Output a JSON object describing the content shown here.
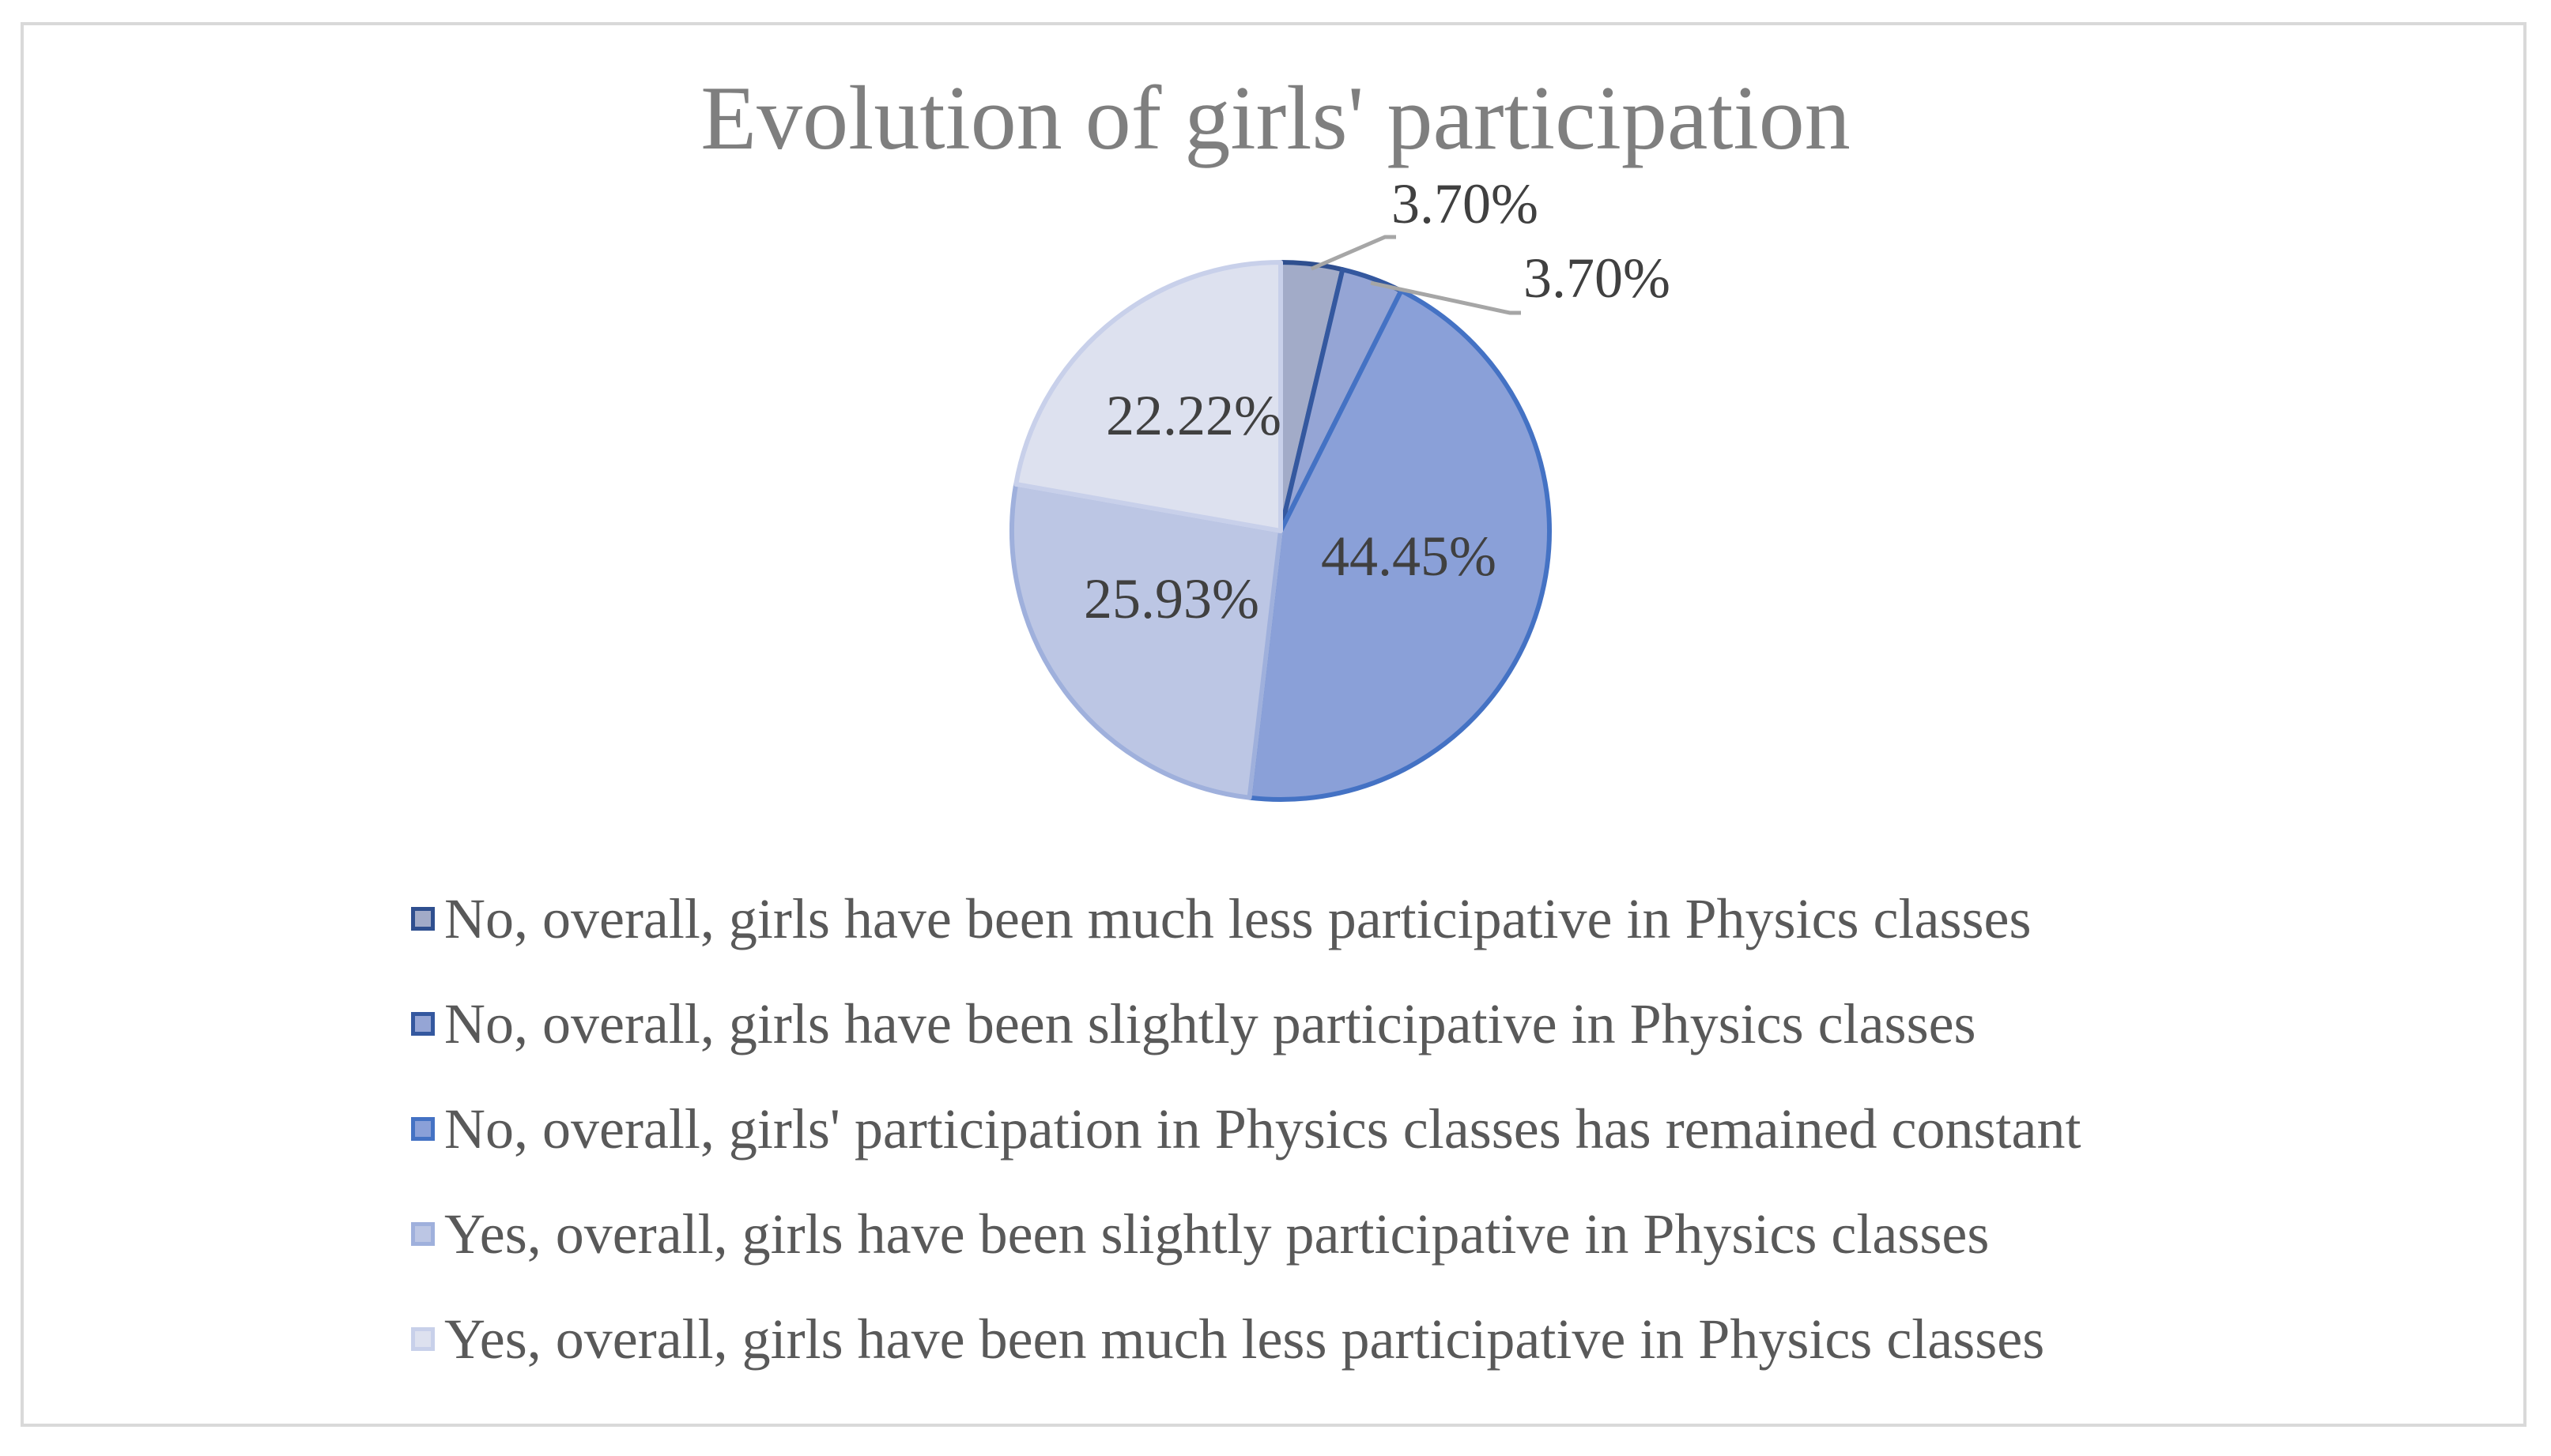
{
  "chart_data": {
    "type": "pie",
    "title": "Evolution of girls' participation",
    "legend_position": "bottom",
    "series": [
      {
        "name": "No, overall, girls have been much less participative in Physics classes",
        "value": 3.7,
        "label": "3.70%",
        "fill": "#a2abc8",
        "stroke": "#2f4f8f"
      },
      {
        "name": "No, overall, girls have been slightly participative in Physics classes",
        "value": 3.7,
        "label": "3.70%",
        "fill": "#95a5d5",
        "stroke": "#34589f"
      },
      {
        "name": "No, overall, girls' participation in Physics classes has remained constant",
        "value": 44.45,
        "label": "44.45%",
        "fill": "#8aa0d8",
        "stroke": "#4472c4"
      },
      {
        "name": "Yes, overall, girls have been slightly participative in Physics classes",
        "value": 25.93,
        "label": "25.93%",
        "fill": "#bcc6e4",
        "stroke": "#9fb0dc"
      },
      {
        "name": "Yes, overall, girls have been much less participative in Physics classes",
        "value": 22.22,
        "label": "22.22%",
        "fill": "#dde1ef",
        "stroke": "#c8d0ea"
      }
    ]
  },
  "colors": {
    "title": "#7f7f7f",
    "label": "#404040",
    "legend_text": "#595959",
    "frame": "#d9d9d9",
    "leader_line": "#a6a6a6"
  }
}
